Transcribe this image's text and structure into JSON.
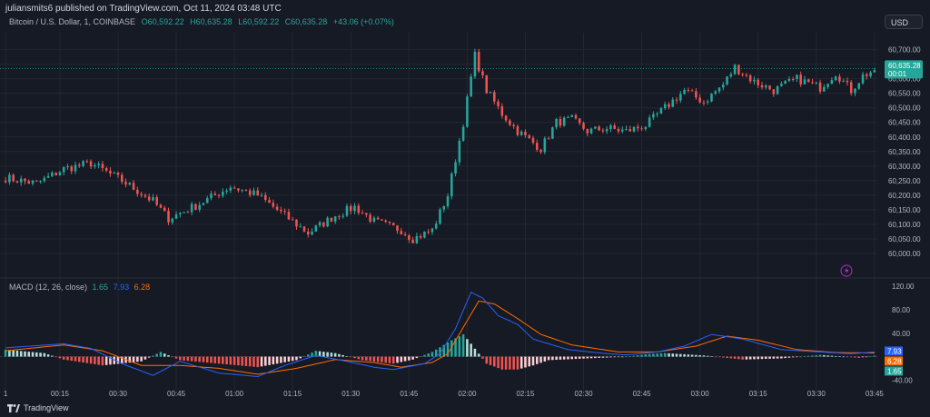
{
  "header": {
    "publisher": "juliansmits6 published on TradingView.com, Oct 11, 2024 03:48 UTC",
    "symbol": "Bitcoin / U.S. Dollar, 1, COINBASE",
    "open": "O60,592.22",
    "high": "H60,635.28",
    "low": "L60,592.22",
    "close": "C60,635.28",
    "change": "+43.06 (+0.07%)"
  },
  "currency_button": "USD",
  "footer_brand": "TradingView",
  "colors": {
    "up": "#26a69a",
    "down": "#ef5350",
    "macd_line": "#2962ff",
    "signal_line": "#ff6d00",
    "background": "#161a25",
    "grid": "#232733"
  },
  "chart_data": [
    {
      "type": "candlestick",
      "price_ylim": [
        59950,
        60730
      ],
      "price_ticks": [
        "60,700.00",
        "60,650.00",
        "60,600.00",
        "60,550.00",
        "60,500.00",
        "60,450.00",
        "60,400.00",
        "60,350.00",
        "60,300.00",
        "60,250.00",
        "60,200.00",
        "60,150.00",
        "60,100.00",
        "60,050.00",
        "60,000.00"
      ],
      "last_price_label": "60,635.28",
      "countdown_label": "00:01",
      "x_ticks": [
        "1",
        "00:15",
        "00:30",
        "00:45",
        "01:00",
        "01:15",
        "01:30",
        "01:45",
        "02:00",
        "02:15",
        "02:30",
        "02:45",
        "03:00",
        "03:15",
        "03:30",
        "03:45"
      ],
      "close_path": [
        [
          0,
          60260
        ],
        [
          8,
          60240
        ],
        [
          15,
          60290
        ],
        [
          22,
          60310
        ],
        [
          30,
          60250
        ],
        [
          38,
          60180
        ],
        [
          42,
          60120
        ],
        [
          50,
          60170
        ],
        [
          58,
          60230
        ],
        [
          65,
          60200
        ],
        [
          72,
          60130
        ],
        [
          78,
          60070
        ],
        [
          85,
          60130
        ],
        [
          90,
          60160
        ],
        [
          95,
          60110
        ],
        [
          102,
          60080
        ],
        [
          105,
          60050
        ],
        [
          110,
          60080
        ],
        [
          114,
          60200
        ],
        [
          118,
          60450
        ],
        [
          121,
          60680
        ],
        [
          124,
          60560
        ],
        [
          128,
          60480
        ],
        [
          132,
          60420
        ],
        [
          136,
          60380
        ],
        [
          138,
          60360
        ],
        [
          142,
          60450
        ],
        [
          146,
          60460
        ],
        [
          150,
          60420
        ],
        [
          155,
          60430
        ],
        [
          160,
          60420
        ],
        [
          165,
          60440
        ],
        [
          170,
          60500
        ],
        [
          175,
          60560
        ],
        [
          180,
          60520
        ],
        [
          185,
          60580
        ],
        [
          188,
          60640
        ],
        [
          193,
          60590
        ],
        [
          198,
          60560
        ],
        [
          204,
          60600
        ],
        [
          210,
          60570
        ],
        [
          214,
          60620
        ],
        [
          218,
          60560
        ],
        [
          221,
          60610
        ],
        [
          224,
          60630
        ]
      ]
    },
    {
      "type": "macd",
      "title": "MACD (12, 26, close)",
      "values": {
        "histogram": "1.65",
        "macd": "7.93",
        "signal": "6.28"
      },
      "ylim": [
        -55,
        125
      ],
      "y_ticks": [
        "120.00",
        "80.00",
        "40.00",
        "-40.00"
      ],
      "histogram_path": [
        [
          0,
          12
        ],
        [
          10,
          6
        ],
        [
          15,
          -5
        ],
        [
          25,
          -15
        ],
        [
          35,
          -8
        ],
        [
          40,
          8
        ],
        [
          45,
          -6
        ],
        [
          55,
          -12
        ],
        [
          65,
          -18
        ],
        [
          75,
          -6
        ],
        [
          80,
          10
        ],
        [
          85,
          6
        ],
        [
          92,
          -6
        ],
        [
          100,
          -12
        ],
        [
          105,
          -5
        ],
        [
          110,
          8
        ],
        [
          115,
          28
        ],
        [
          118,
          38
        ],
        [
          120,
          22
        ],
        [
          124,
          -12
        ],
        [
          128,
          -22
        ],
        [
          132,
          -22
        ],
        [
          136,
          -15
        ],
        [
          140,
          -6
        ],
        [
          150,
          -3
        ],
        [
          160,
          0
        ],
        [
          165,
          4
        ],
        [
          170,
          6
        ],
        [
          180,
          2
        ],
        [
          190,
          -5
        ],
        [
          200,
          -3
        ],
        [
          210,
          3
        ],
        [
          220,
          -2
        ],
        [
          224,
          1.65
        ]
      ],
      "macd_path": [
        [
          0,
          15
        ],
        [
          15,
          22
        ],
        [
          22,
          14
        ],
        [
          30,
          -12
        ],
        [
          38,
          -32
        ],
        [
          45,
          -8
        ],
        [
          55,
          -28
        ],
        [
          65,
          -34
        ],
        [
          72,
          -15
        ],
        [
          80,
          2
        ],
        [
          88,
          -8
        ],
        [
          95,
          -18
        ],
        [
          100,
          -22
        ],
        [
          108,
          -12
        ],
        [
          112,
          5
        ],
        [
          116,
          48
        ],
        [
          120,
          110
        ],
        [
          123,
          100
        ],
        [
          127,
          70
        ],
        [
          132,
          55
        ],
        [
          136,
          30
        ],
        [
          145,
          12
        ],
        [
          155,
          5
        ],
        [
          160,
          3
        ],
        [
          168,
          8
        ],
        [
          175,
          18
        ],
        [
          182,
          38
        ],
        [
          190,
          30
        ],
        [
          200,
          12
        ],
        [
          210,
          8
        ],
        [
          218,
          5
        ],
        [
          224,
          7.93
        ]
      ],
      "signal_path": [
        [
          0,
          10
        ],
        [
          15,
          20
        ],
        [
          25,
          10
        ],
        [
          35,
          -15
        ],
        [
          45,
          -15
        ],
        [
          55,
          -20
        ],
        [
          65,
          -30
        ],
        [
          75,
          -20
        ],
        [
          85,
          -5
        ],
        [
          95,
          -10
        ],
        [
          102,
          -18
        ],
        [
          110,
          -10
        ],
        [
          114,
          5
        ],
        [
          118,
          50
        ],
        [
          122,
          95
        ],
        [
          126,
          90
        ],
        [
          132,
          65
        ],
        [
          138,
          38
        ],
        [
          146,
          20
        ],
        [
          158,
          8
        ],
        [
          168,
          8
        ],
        [
          178,
          18
        ],
        [
          186,
          35
        ],
        [
          194,
          28
        ],
        [
          204,
          12
        ],
        [
          214,
          7
        ],
        [
          224,
          6.28
        ]
      ]
    }
  ]
}
